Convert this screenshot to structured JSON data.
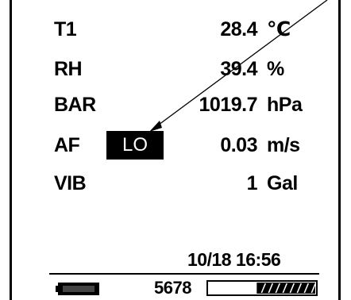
{
  "readings": [
    {
      "label": "T1",
      "value": "28.4",
      "unit": "℃"
    },
    {
      "label": "RH",
      "value": "39.4",
      "unit": "%"
    },
    {
      "label": "BAR",
      "value": "1019.7",
      "unit": "hPa"
    },
    {
      "label": "AF",
      "value": "0.03",
      "unit": "m/s"
    },
    {
      "label": "VIB",
      "value": "1",
      "unit": "Gal"
    }
  ],
  "af_mode_badge": "LO",
  "datetime": "10/18 16:56",
  "status_bar": {
    "counter": "5678",
    "progress_fraction": 0.55,
    "battery_icon": "battery-icon"
  },
  "colors": {
    "foreground": "#000000",
    "background": "#ffffff"
  }
}
